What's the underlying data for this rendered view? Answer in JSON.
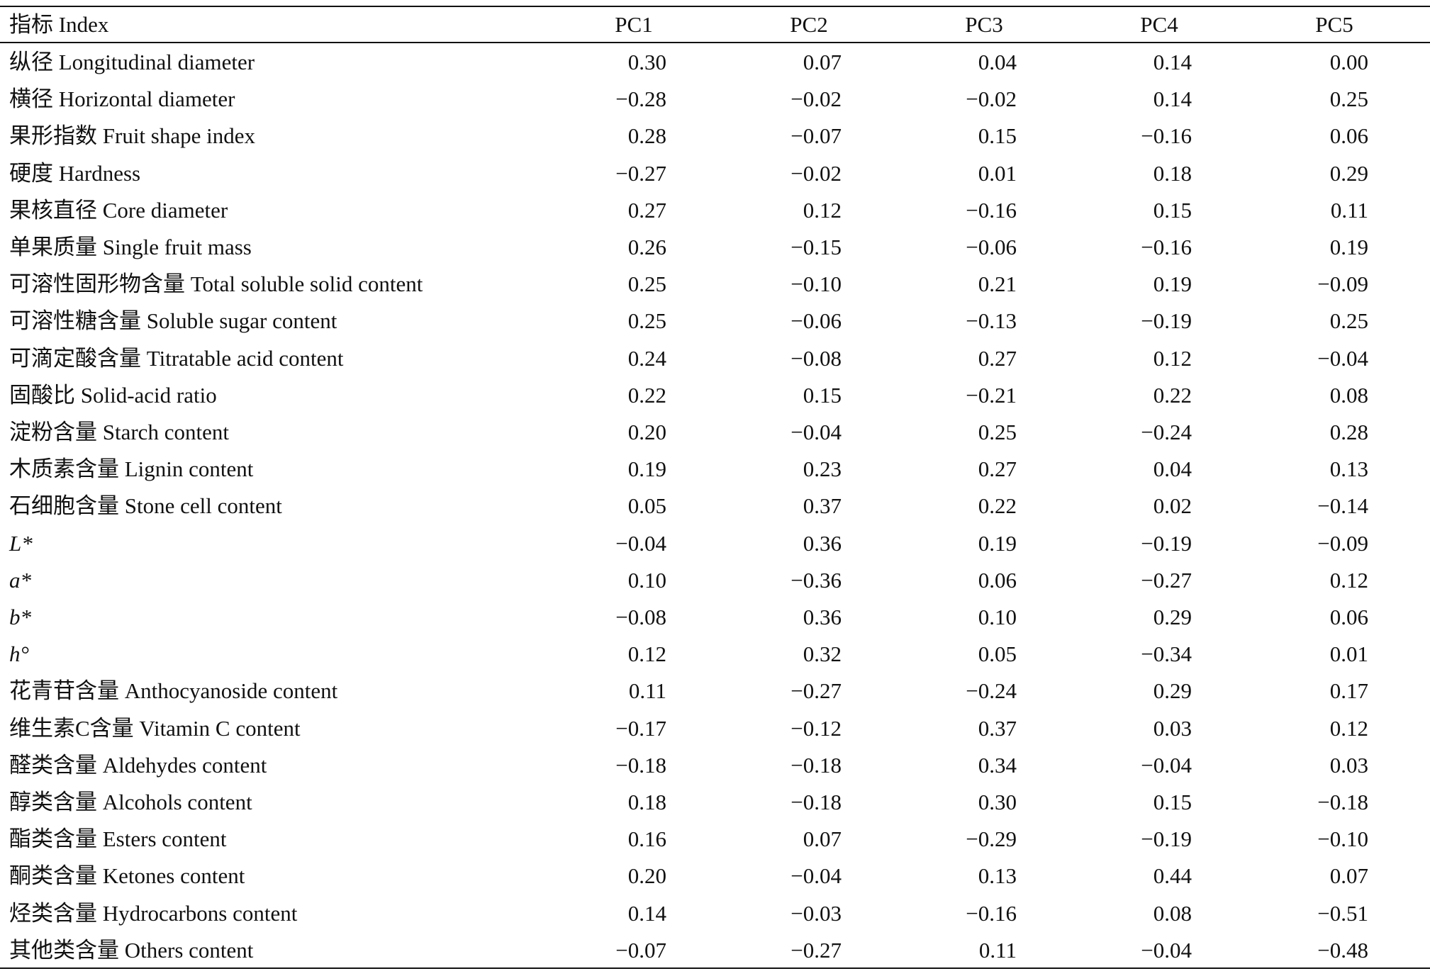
{
  "table": {
    "header": [
      "指标 Index",
      "PC1",
      "PC2",
      "PC3",
      "PC4",
      "PC5"
    ],
    "rows": [
      [
        "纵径 Longitudinal diameter",
        "0.30",
        "0.07",
        "0.04",
        "0.14",
        "0.00"
      ],
      [
        "横径 Horizontal diameter",
        "−0.28",
        "−0.02",
        "−0.02",
        "0.14",
        "0.25"
      ],
      [
        "果形指数 Fruit shape index",
        "0.28",
        "−0.07",
        "0.15",
        "−0.16",
        "0.06"
      ],
      [
        "硬度 Hardness",
        "−0.27",
        "−0.02",
        "0.01",
        "0.18",
        "0.29"
      ],
      [
        "果核直径 Core diameter",
        "0.27",
        "0.12",
        "−0.16",
        "0.15",
        "0.11"
      ],
      [
        "单果质量 Single fruit mass",
        "0.26",
        "−0.15",
        "−0.06",
        "−0.16",
        "0.19"
      ],
      [
        "可溶性固形物含量 Total soluble solid content",
        "0.25",
        "−0.10",
        "0.21",
        "0.19",
        "−0.09"
      ],
      [
        "可溶性糖含量 Soluble sugar content",
        "0.25",
        "−0.06",
        "−0.13",
        "−0.19",
        "0.25"
      ],
      [
        "可滴定酸含量 Titratable acid content",
        "0.24",
        "−0.08",
        "0.27",
        "0.12",
        "−0.04"
      ],
      [
        "固酸比 Solid-acid ratio",
        "0.22",
        "0.15",
        "−0.21",
        "0.22",
        "0.08"
      ],
      [
        "淀粉含量 Starch content",
        "0.20",
        "−0.04",
        "0.25",
        "−0.24",
        "0.28"
      ],
      [
        "木质素含量 Lignin content",
        "0.19",
        "0.23",
        "0.27",
        "0.04",
        "0.13"
      ],
      [
        "石细胞含量 Stone cell content",
        "0.05",
        "0.37",
        "0.22",
        "0.02",
        "−0.14"
      ],
      [
        "L*",
        "−0.04",
        "0.36",
        "0.19",
        "−0.19",
        "−0.09"
      ],
      [
        "a*",
        "0.10",
        "−0.36",
        "0.06",
        "−0.27",
        "0.12"
      ],
      [
        "b*",
        "−0.08",
        "0.36",
        "0.10",
        "0.29",
        "0.06"
      ],
      [
        "h°",
        "0.12",
        "0.32",
        "0.05",
        "−0.34",
        "0.01"
      ],
      [
        "花青苷含量 Anthocyanoside content",
        "0.11",
        "−0.27",
        "−0.24",
        "0.29",
        "0.17"
      ],
      [
        "维生素C含量 Vitamin C content",
        "−0.17",
        "−0.12",
        "0.37",
        "0.03",
        "0.12"
      ],
      [
        "醛类含量 Aldehydes content",
        "−0.18",
        "−0.18",
        "0.34",
        "−0.04",
        "0.03"
      ],
      [
        "醇类含量 Alcohols content",
        "0.18",
        "−0.18",
        "0.30",
        "0.15",
        "−0.18"
      ],
      [
        "酯类含量 Esters content",
        "0.16",
        "0.07",
        "−0.29",
        "−0.19",
        "−0.10"
      ],
      [
        "酮类含量 Ketones content",
        "0.20",
        "−0.04",
        "0.13",
        "0.44",
        "0.07"
      ],
      [
        "烃类含量 Hydrocarbons content",
        "0.14",
        "−0.03",
        "−0.16",
        "0.08",
        "−0.51"
      ],
      [
        "其他类含量 Others content",
        "−0.07",
        "−0.27",
        "0.11",
        "−0.04",
        "−0.48"
      ]
    ]
  }
}
